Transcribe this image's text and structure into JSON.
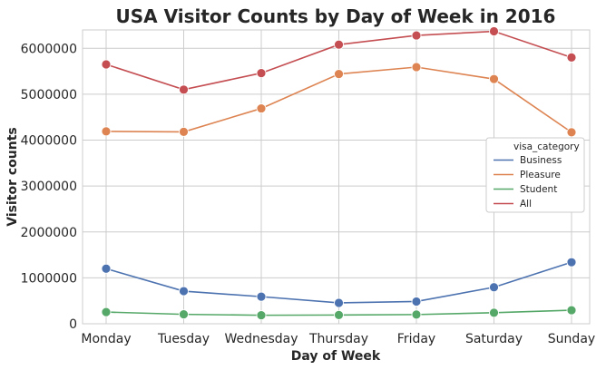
{
  "chart_data": {
    "type": "line",
    "title": "USA Visitor Counts by Day of Week in 2016",
    "xlabel": "Day of Week",
    "ylabel": "Visitor counts",
    "categories": [
      "Monday",
      "Tuesday",
      "Wednesday",
      "Thursday",
      "Friday",
      "Saturday",
      "Sunday"
    ],
    "ylim": [
      0,
      6400000
    ],
    "yticks": [
      0,
      1000000,
      2000000,
      3000000,
      4000000,
      5000000,
      6000000
    ],
    "ytick_labels": [
      "0",
      "1000000",
      "2000000",
      "3000000",
      "4000000",
      "5000000",
      "6000000"
    ],
    "grid": true,
    "legend": {
      "title": "visa_category",
      "placement": "center-right"
    },
    "series": [
      {
        "name": "Business",
        "color": "#4c72b0",
        "values": [
          1200000,
          710000,
          590000,
          455000,
          485000,
          795000,
          1340000
        ]
      },
      {
        "name": "Pleasure",
        "color": "#dd8452",
        "values": [
          4190000,
          4180000,
          4690000,
          5440000,
          5590000,
          5330000,
          4170000
        ]
      },
      {
        "name": "Student",
        "color": "#55a868",
        "values": [
          255000,
          205000,
          185000,
          190000,
          200000,
          240000,
          295000
        ]
      },
      {
        "name": "All",
        "color": "#c44e52",
        "values": [
          5650000,
          5100000,
          5460000,
          6080000,
          6280000,
          6370000,
          5800000
        ]
      }
    ]
  }
}
